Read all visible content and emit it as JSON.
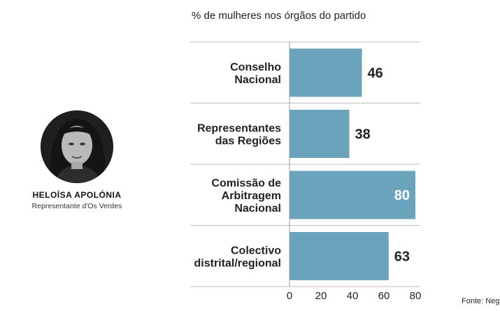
{
  "profile": {
    "name": "HELOÍSA APOLÓNIA",
    "role": "Representante d'Os Verdes"
  },
  "source": "Fonte: Neg",
  "colors": {
    "bar": "#6ba3bd",
    "grid": "#bdbdbd",
    "value_label": "#222222",
    "value_label_inside": "#ffffff"
  },
  "chart_data": {
    "type": "bar",
    "orientation": "horizontal",
    "title": "% de mulheres nos órgãos do partido",
    "categories": [
      [
        "Conselho",
        "Nacional"
      ],
      [
        "Representantes",
        "das Regiões"
      ],
      [
        "Comissão de",
        "Arbitragem",
        "Nacional"
      ],
      [
        "Colectivo",
        "distrital/regional"
      ]
    ],
    "values": [
      46,
      38,
      80,
      63
    ],
    "xlim": [
      0,
      80
    ],
    "xticks": [
      "0",
      "20",
      "40",
      "60",
      "80"
    ],
    "grid": "horizontal separators between categories",
    "legend": "none"
  }
}
